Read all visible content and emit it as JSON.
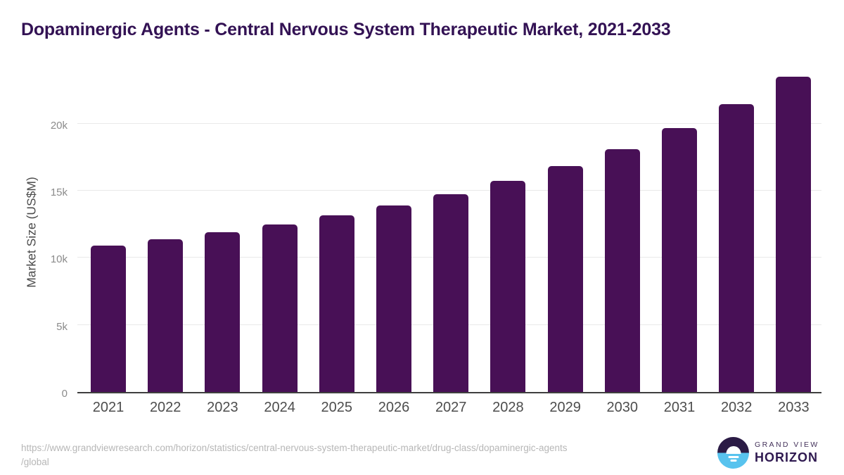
{
  "header": {
    "title": "Dopaminergic Agents - Central Nervous System Therapeutic Market, 2021-2033"
  },
  "chart_data": {
    "type": "bar",
    "title": "Dopaminergic Agents - Central Nervous System Therapeutic Market, 2021-2033",
    "categories": [
      "2021",
      "2022",
      "2023",
      "2024",
      "2025",
      "2026",
      "2027",
      "2028",
      "2029",
      "2030",
      "2031",
      "2032",
      "2033"
    ],
    "values": [
      10930,
      11400,
      11900,
      12500,
      13150,
      13900,
      14720,
      15720,
      16830,
      18100,
      19650,
      21470,
      23500
    ],
    "unit": "US$M",
    "xlabel": "",
    "ylabel": "Market Size (US$M)",
    "ylim": [
      0,
      24000
    ],
    "yticks": [
      0,
      5000,
      10000,
      15000,
      20000
    ],
    "ytick_labels": [
      "0",
      "5k",
      "10k",
      "15k",
      "20k"
    ],
    "grid": true,
    "legend": false,
    "bar_color": "#481056"
  },
  "footer": {
    "source_url_line1": "https://www.grandviewresearch.com/horizon/statistics/central-nervous-system-therapeutic-market/drug-class/dopaminergic-agents",
    "source_url_line2": "/global"
  },
  "logo": {
    "brand_top": "GRAND VIEW",
    "brand_bottom": "HORIZON"
  },
  "colors": {
    "title_text": "#331254",
    "bar": "#481056",
    "gridline": "#e9e9e9",
    "axis_baseline": "#3f3f3f",
    "y_tick_text": "#8b8b8b",
    "x_tick_text": "#4d4d4d",
    "y_axis_title_text": "#4c4c4c",
    "footer_text": "#b7b7b7",
    "logo_dark_purple": "#2b1b45",
    "logo_light_blue": "#58c3ee"
  }
}
